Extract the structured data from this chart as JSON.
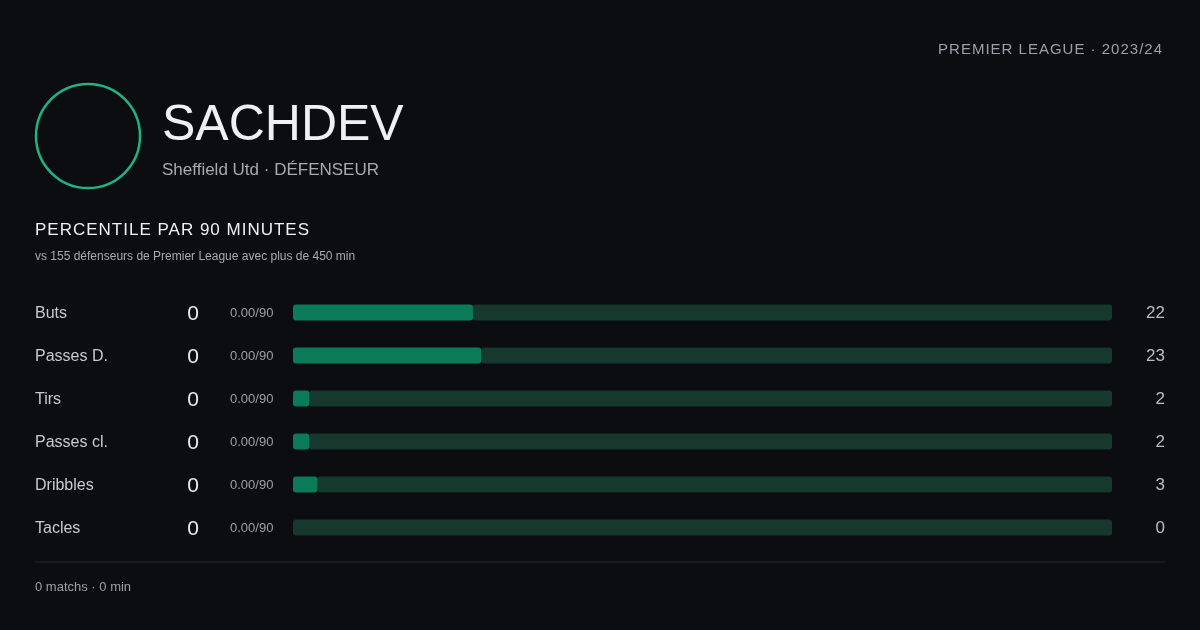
{
  "chart_data": {
    "type": "bar",
    "orientation": "horizontal",
    "stacked": true,
    "title": "SACHDEV",
    "subtitle": "Sheffield Utd · DÉFENSEUR",
    "categories": [
      "Buts",
      "Passes D.",
      "Tirs",
      "Passes cl.",
      "Dribbles",
      "Tacles"
    ],
    "series": [
      {
        "color": "#0b7a56",
        "values": [
          22,
          23,
          2,
          2,
          3,
          0
        ],
        "value_labels": [
          "22",
          "23",
          "2",
          "2",
          "3",
          "0"
        ]
      },
      {
        "color": "#17392d",
        "values": [
          78,
          77,
          98,
          98,
          97,
          100
        ]
      }
    ],
    "xlim": [
      0,
      100
    ],
    "annotations": [
      "PREMIER LEAGUE · 2023/24",
      "PERCENTILE PAR 90 MINUTES",
      "vs 155 défenseurs de Premier League avec plus de 450 min",
      "0 matchs · 0 min",
      "0",
      "0.00/90",
      "0",
      "0.00/90",
      "0",
      "0.00/90",
      "0",
      "0.00/90",
      "0",
      "0.00/90",
      "0",
      "0.00/90"
    ]
  }
}
